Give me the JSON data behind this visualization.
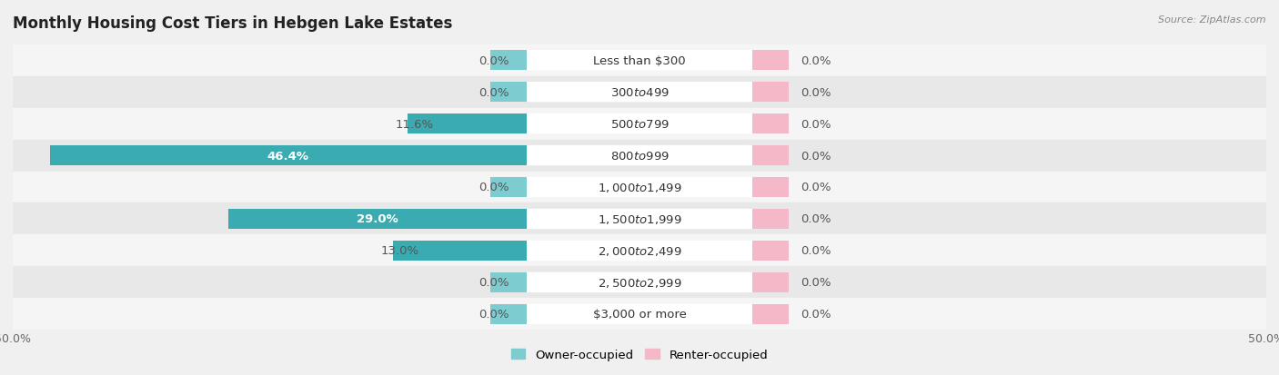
{
  "title": "Monthly Housing Cost Tiers in Hebgen Lake Estates",
  "source": "Source: ZipAtlas.com",
  "categories": [
    "Less than $300",
    "$300 to $499",
    "$500 to $799",
    "$800 to $999",
    "$1,000 to $1,499",
    "$1,500 to $1,999",
    "$2,000 to $2,499",
    "$2,500 to $2,999",
    "$3,000 or more"
  ],
  "owner_values": [
    0.0,
    0.0,
    11.6,
    46.4,
    0.0,
    29.0,
    13.0,
    0.0,
    0.0
  ],
  "renter_values": [
    0.0,
    0.0,
    0.0,
    0.0,
    0.0,
    0.0,
    0.0,
    0.0,
    0.0
  ],
  "owner_color_full": "#3aabb0",
  "owner_color_stub": "#7dcdd0",
  "renter_color_stub": "#f4b8c8",
  "row_colors": [
    "#f5f5f5",
    "#e8e8e8"
  ],
  "background_color": "#f0f0f0",
  "xlim": 50.0,
  "stub_val": 3.5,
  "bar_height": 0.62,
  "legend_owner": "Owner-occupied",
  "legend_renter": "Renter-occupied",
  "title_fontsize": 12,
  "label_fontsize": 9.5,
  "cat_fontsize": 9.5,
  "tick_fontsize": 9,
  "source_fontsize": 8,
  "owner_label_color": "#555555",
  "owner_label_color_inside": "#ffffff",
  "renter_label_color": "#555555"
}
